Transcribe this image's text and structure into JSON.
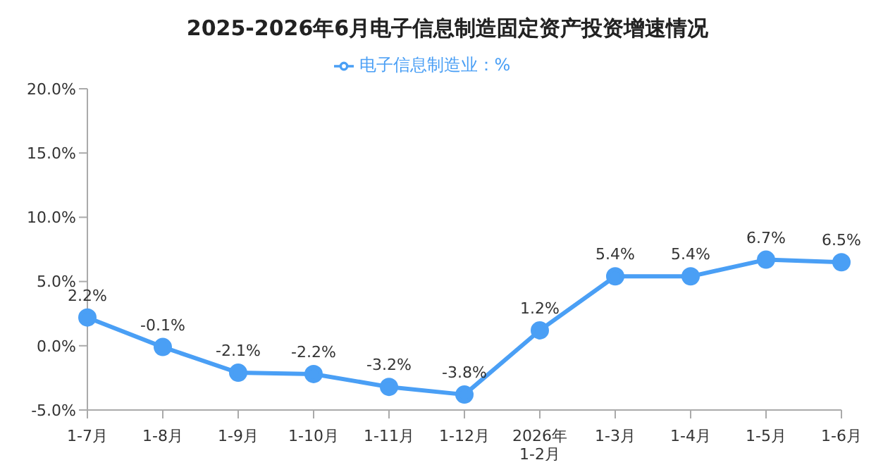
{
  "chart_data": {
    "type": "line",
    "title": "2025-2026年6月电子信息制造固定资产投资增速情况",
    "categories": [
      "1-7月",
      "1-8月",
      "1-9月",
      "1-10月",
      "1-11月",
      "1-12月",
      "2026年\n1-2月",
      "1-3月",
      "1-4月",
      "1-5月",
      "1-6月"
    ],
    "series": [
      {
        "name": "电子信息制造业：%",
        "color": "#4a9ff5",
        "values": [
          2.2,
          -0.1,
          -2.1,
          -2.2,
          -3.2,
          -3.8,
          1.2,
          5.4,
          5.4,
          6.7,
          6.5
        ],
        "value_labels": [
          "2.2%",
          "-0.1%",
          "-2.1%",
          "-2.2%",
          "-3.2%",
          "-3.8%",
          "1.2%",
          "5.4%",
          "5.4%",
          "6.7%",
          "6.5%"
        ]
      }
    ],
    "ylim": [
      -5,
      20
    ],
    "yticks": [
      {
        "value": -5,
        "label": "-5.0%"
      },
      {
        "value": 0,
        "label": "0.0%"
      },
      {
        "value": 5,
        "label": "5.0%"
      },
      {
        "value": 10,
        "label": "10.0%"
      },
      {
        "value": 15,
        "label": "15.0%"
      },
      {
        "value": 20,
        "label": "20.0%"
      }
    ],
    "grid": false,
    "legend": "top",
    "marker": "circle",
    "line_style": "solid"
  }
}
